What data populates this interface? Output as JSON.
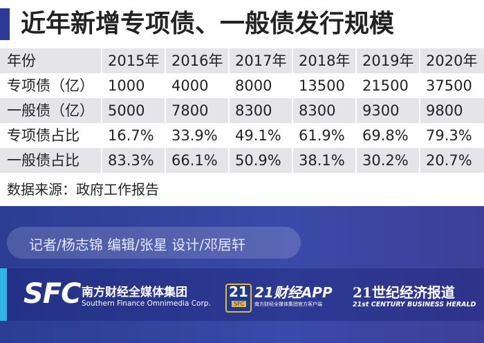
{
  "header": {
    "title": "近年新增专项债、一般债发行规模"
  },
  "table": {
    "columns": [
      "年份",
      "2015年",
      "2016年",
      "2017年",
      "2018年",
      "2019年",
      "2020年"
    ],
    "rows": [
      [
        "专项债（亿）",
        "1000",
        "4000",
        "8000",
        "13500",
        "21500",
        "37500"
      ],
      [
        "一般债（亿）",
        "5000",
        "7800",
        "8300",
        "8300",
        "9300",
        "9800"
      ],
      [
        "专项债占比",
        "16.7%",
        "33.9%",
        "49.1%",
        "61.9%",
        "69.8%",
        "79.3%"
      ],
      [
        "一般债占比",
        "83.3%",
        "66.1%",
        "50.9%",
        "38.1%",
        "30.2%",
        "20.7%"
      ]
    ]
  },
  "source": "数据来源：政府工作报告",
  "credits": "记者/杨志锦 编辑/张星 设计/邓居轩",
  "footer": {
    "logos": [
      {
        "mark": "SFC",
        "name": "南方财经全媒体集团",
        "subtitle": "Southern Finance Omnimedia Corp."
      },
      {
        "mark": "21",
        "badge": "SFC",
        "name": "21财经APP",
        "subtitle": "南方财经全媒体集团官方客户端"
      },
      {
        "name": "21世纪经济报道",
        "subtitle": "21st CENTURY BUSINESS HERALD"
      }
    ]
  }
}
